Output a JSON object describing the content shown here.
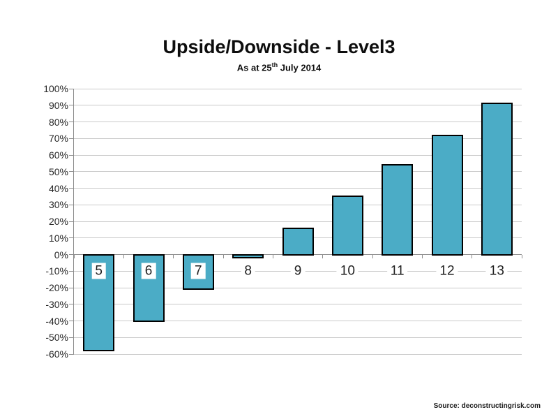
{
  "title": "Upside/Downside - Level3",
  "subtitle": {
    "prefix": "As at 25",
    "sup": "th",
    "suffix": " July 2014"
  },
  "source": "Source: deconstructingrisk.com",
  "chart_data": {
    "type": "bar",
    "title": "Upside/Downside - Level3",
    "subtitle": "As at 25th July 2014",
    "categories": [
      "5",
      "6",
      "7",
      "8",
      "9",
      "10",
      "11",
      "12",
      "13"
    ],
    "values": [
      -58,
      -40,
      -21,
      -2,
      16,
      35,
      54,
      72,
      91
    ],
    "xlabel": "",
    "ylabel": "",
    "ylim": [
      -60,
      100
    ],
    "y_step": 10,
    "y_tick_labels": [
      "100%",
      "90%",
      "80%",
      "70%",
      "60%",
      "50%",
      "40%",
      "30%",
      "20%",
      "10%",
      "0%",
      "-10%",
      "-20%",
      "-30%",
      "-40%",
      "-50%",
      "-60%"
    ],
    "grid": true,
    "legend": false,
    "category_labels_on_value": -10,
    "colors": {
      "bar_fill": "#4BACC6",
      "bar_border": "#000000",
      "gridline": "#C9C9C9",
      "axis_line": "#8C8C8C",
      "label_text": "#1F1F1F",
      "background": "#FFFFFF"
    }
  }
}
